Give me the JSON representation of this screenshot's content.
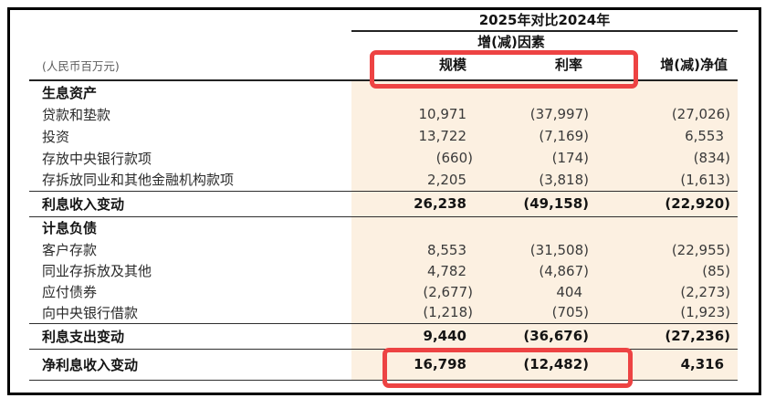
{
  "table": {
    "period_header": "2025年对比2024年",
    "factor_header": "增(减)因素",
    "unit_note": "(人民币百万元)",
    "columns": [
      "规模",
      "利率",
      "增(减)净值"
    ],
    "rows": [
      {
        "label": "生息资产"
      },
      {
        "label": "贷款和垫款",
        "scale": "10,971",
        "rate": "(37,997)",
        "net": "(27,026)"
      },
      {
        "label": "投资",
        "scale": "13,722",
        "rate": "(7,169)",
        "net": "6,553"
      },
      {
        "label": "存放中央银行款项",
        "scale": "(660)",
        "rate": "(174)",
        "net": "(834)"
      },
      {
        "label": "存拆放同业和其他金融机构款项",
        "scale": "2,205",
        "rate": "(3,818)",
        "net": "(1,613)"
      },
      {
        "label": "利息收入变动",
        "scale": "26,238",
        "rate": "(49,158)",
        "net": "(22,920)"
      },
      {
        "label": "计息负债"
      },
      {
        "label": "客户存款",
        "scale": "8,553",
        "rate": "(31,508)",
        "net": "(22,955)"
      },
      {
        "label": "同业存拆放及其他",
        "scale": "4,782",
        "rate": "(4,867)",
        "net": "(85)"
      },
      {
        "label": "应付债券",
        "scale": "(2,677)",
        "rate": "404",
        "net": "(2,273)"
      },
      {
        "label": "向中央银行借款",
        "scale": "(1,218)",
        "rate": "(705)",
        "net": "(1,923)"
      },
      {
        "label": "利息支出变动",
        "scale": "9,440",
        "rate": "(36,676)",
        "net": "(27,236)"
      },
      {
        "label": "净利息收入变动",
        "scale": "16,798",
        "rate": "(12,482)",
        "net": "4,316"
      }
    ],
    "colors": {
      "highlight_band": "#fcf0e1",
      "annotation_red": "#ed4343"
    }
  }
}
